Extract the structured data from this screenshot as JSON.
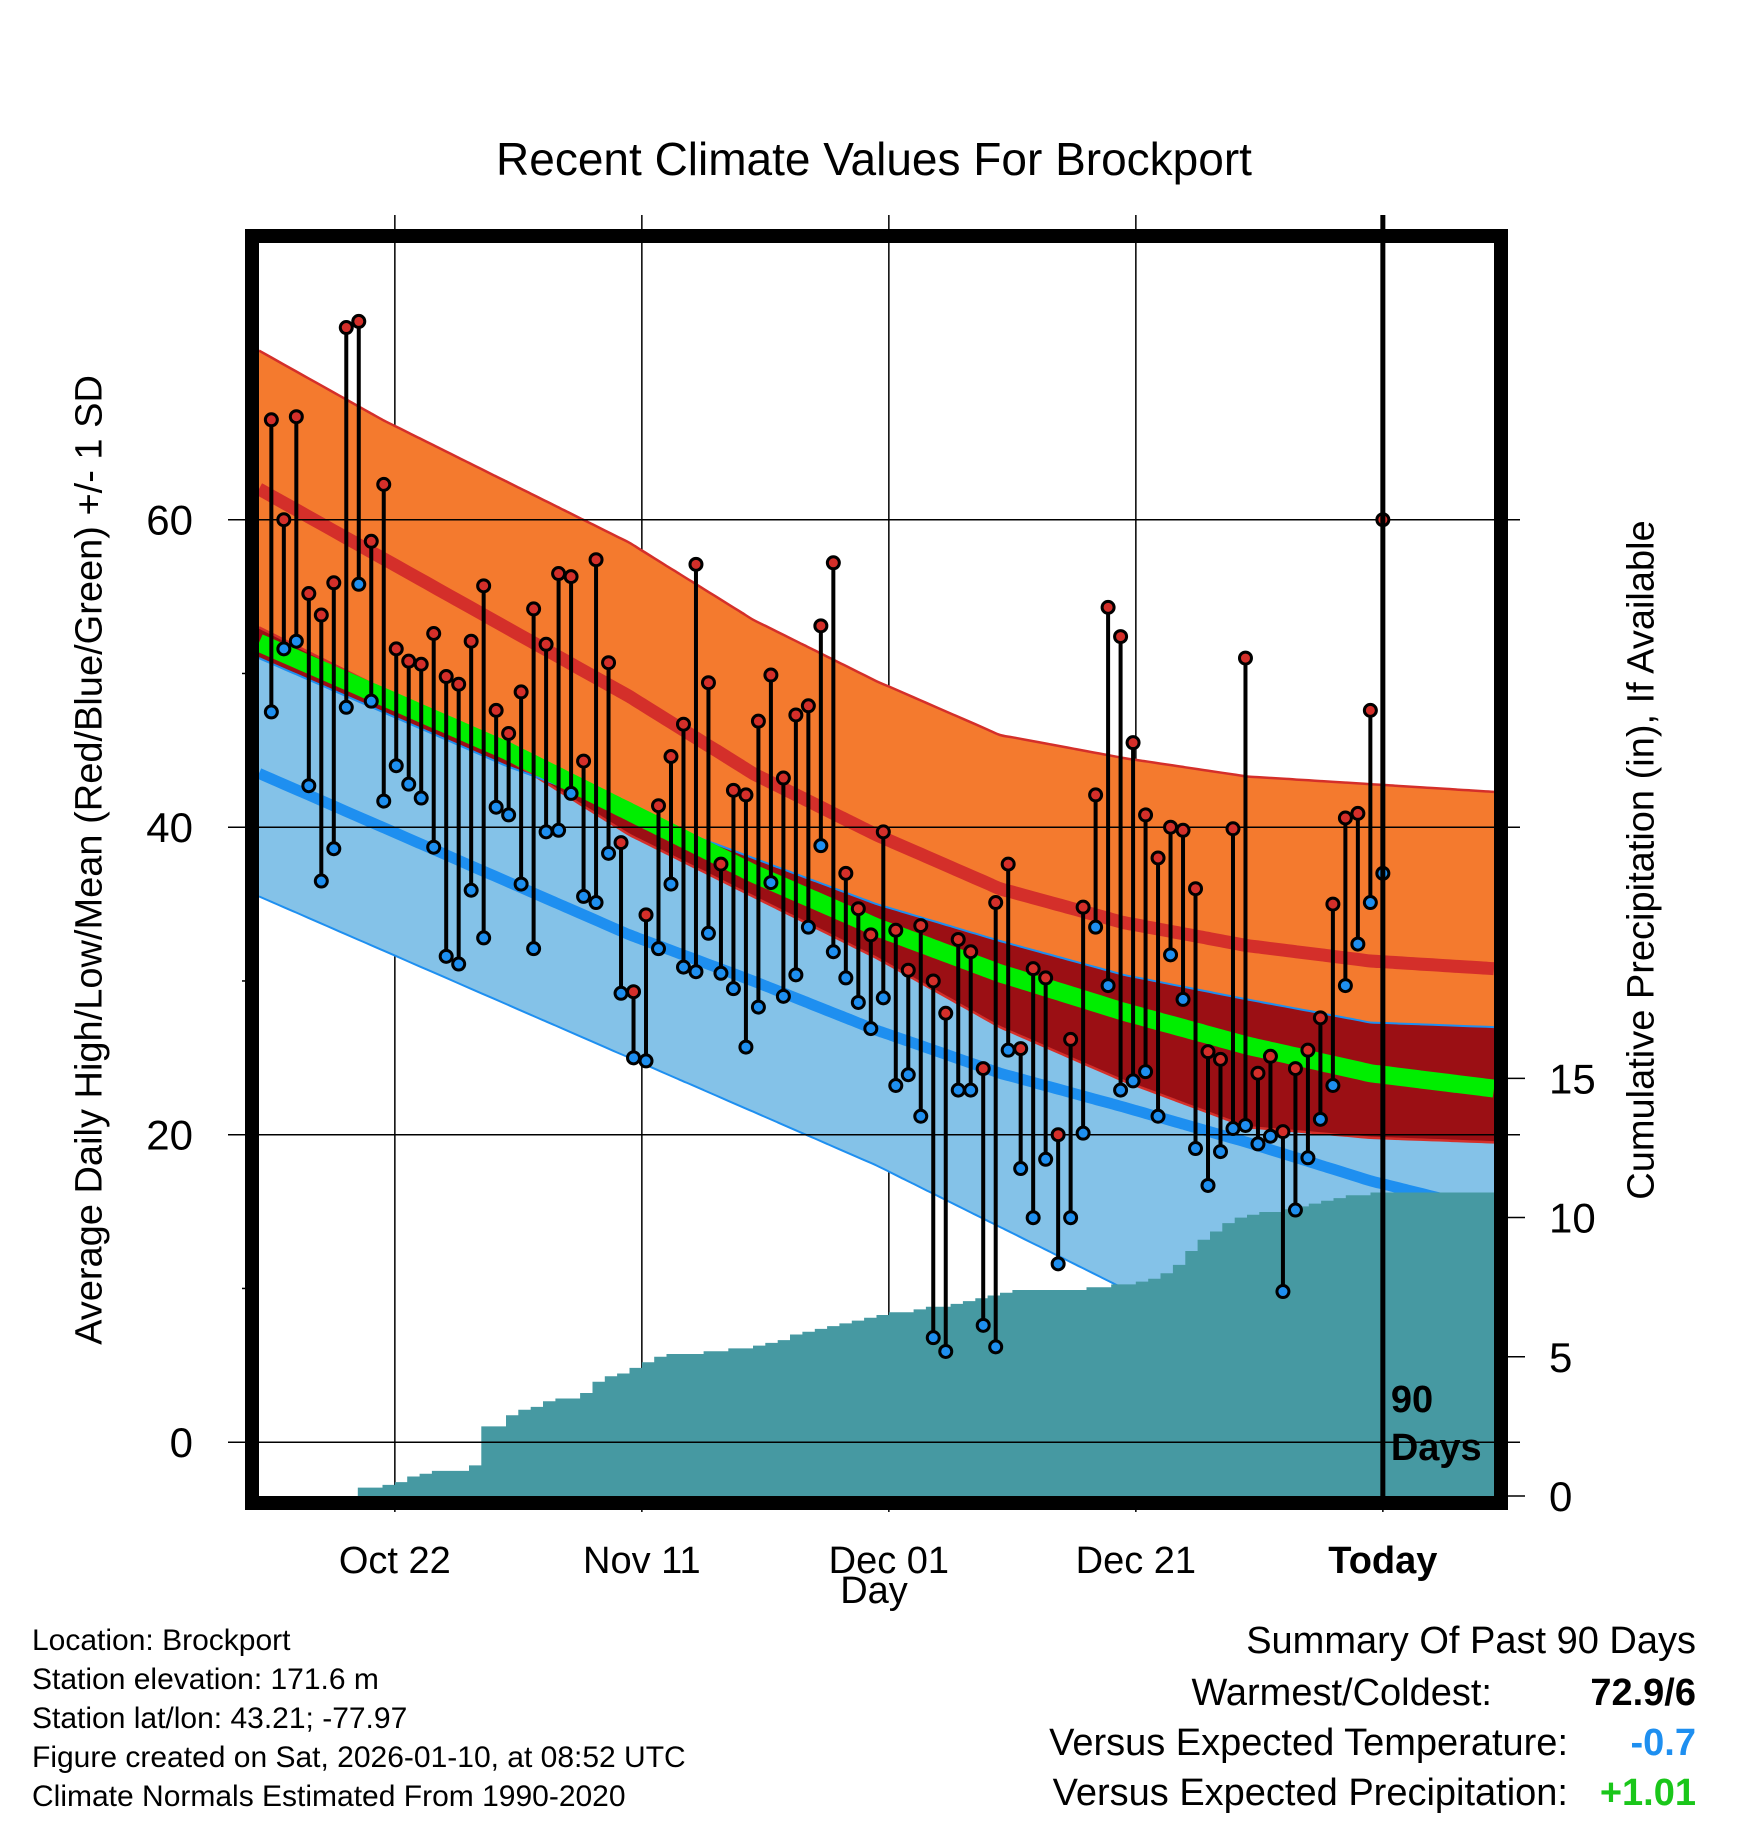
{
  "chart_data": {
    "type": "line",
    "title": "Recent Climate Values For Brockport",
    "xlabel": "Day",
    "ylabel": "Average Daily High/Low/Mean (Red/Blue/Green) +/- 1 SD",
    "y2label": "Cumulative Precipitation (in), If Available",
    "x_range_days": [
      0,
      100
    ],
    "ylim": [
      -3.5,
      78
    ],
    "y_ticks": [
      0,
      20,
      40,
      60
    ],
    "y2lim": [
      0,
      45
    ],
    "y2_ticks": [
      0,
      5,
      10,
      15
    ],
    "x_ticks": [
      {
        "day": 11,
        "label": "Oct 22"
      },
      {
        "day": 31,
        "label": "Nov 11"
      },
      {
        "day": 51,
        "label": "Dec 01"
      },
      {
        "day": 71,
        "label": "Dec 21"
      },
      {
        "day": 91,
        "label": "Today"
      }
    ],
    "today_day": 91,
    "window_label": [
      "90",
      "Days"
    ],
    "normals": {
      "days": [
        0,
        10,
        20,
        30,
        40,
        50,
        60,
        70,
        80,
        90,
        100
      ],
      "high_mean": [
        62.0,
        57.5,
        53.0,
        48.5,
        43.5,
        39.5,
        36.0,
        33.8,
        32.3,
        31.3,
        30.8
      ],
      "high_upper": [
        71.0,
        66.5,
        62.5,
        58.5,
        53.5,
        49.5,
        46.0,
        44.5,
        43.3,
        42.8,
        42.3
      ],
      "high_lower": [
        53.0,
        49.0,
        44.5,
        39.5,
        35.5,
        31.5,
        27.0,
        23.5,
        20.5,
        19.8,
        19.5
      ],
      "mean_mean": [
        52.0,
        48.5,
        45.0,
        41.0,
        37.0,
        33.5,
        30.5,
        28.0,
        25.8,
        24.0,
        23.0
      ],
      "low_mean": [
        43.5,
        40.0,
        36.5,
        33.0,
        30.0,
        26.8,
        24.0,
        21.8,
        19.5,
        17.0,
        15.0
      ],
      "low_upper": [
        51.0,
        47.5,
        44.0,
        41.0,
        38.0,
        35.0,
        32.6,
        30.4,
        28.8,
        27.3,
        27.0
      ],
      "low_lower": [
        35.5,
        32.0,
        28.5,
        25.0,
        21.5,
        18.0,
        14.0,
        10.0,
        6.5,
        4.0,
        2.5
      ]
    },
    "series": [
      {
        "name": "High",
        "values": [
          66.5,
          60,
          66.7,
          55.2,
          53.8,
          55.9,
          72.5,
          72.9,
          58.6,
          62.3,
          51.6,
          50.8,
          50.6,
          52.6,
          49.8,
          49.3,
          52.1,
          55.7,
          47.6,
          46.1,
          48.8,
          54.2,
          51.9,
          56.5,
          56.3,
          44.3,
          57.4,
          50.7,
          39,
          29.3,
          34.3,
          41.4,
          44.6,
          46.7,
          57.1,
          49.4,
          37.6,
          42.4,
          42.1,
          46.9,
          49.9,
          43.2,
          47.3,
          47.9,
          53.1,
          57.2,
          37,
          34.7,
          33,
          39.7,
          33.3,
          30.7,
          33.6,
          30,
          27.9,
          32.7,
          31.9,
          24.3,
          35.1,
          37.6,
          25.6,
          30.8,
          30.2,
          20,
          26.2,
          34.8,
          42.1,
          54.3,
          52.4,
          45.5,
          40.8,
          38,
          40,
          39.8,
          36,
          25.4,
          24.9,
          39.9,
          51,
          24,
          25.1,
          20.2,
          24.3,
          25.5,
          27.6,
          35,
          40.6,
          40.9,
          47.6,
          60
        ]
      },
      {
        "name": "Low",
        "values": [
          47.5,
          51.6,
          52.1,
          42.7,
          36.5,
          38.6,
          47.8,
          55.8,
          48.2,
          41.7,
          44,
          42.8,
          41.9,
          38.7,
          31.6,
          31.1,
          35.9,
          32.8,
          41.3,
          40.8,
          36.3,
          32.1,
          39.7,
          39.8,
          42.2,
          35.5,
          35.1,
          38.3,
          29.2,
          25,
          24.8,
          32.1,
          36.3,
          30.9,
          30.6,
          33.1,
          30.5,
          29.5,
          25.7,
          28.3,
          36.4,
          29,
          30.4,
          33.5,
          38.8,
          31.9,
          30.2,
          28.6,
          26.9,
          28.9,
          23.2,
          23.9,
          21.2,
          6.8,
          5.9,
          22.9,
          22.9,
          7.6,
          6.2,
          25.5,
          17.8,
          14.6,
          18.4,
          11.6,
          14.6,
          20.1,
          33.5,
          29.7,
          22.9,
          23.5,
          24.1,
          21.2,
          31.7,
          28.8,
          19.1,
          16.7,
          18.9,
          20.4,
          20.6,
          19.4,
          19.9,
          9.8,
          15.1,
          18.5,
          21,
          23.2,
          29.7,
          32.4,
          35.1,
          37
        ]
      }
    ],
    "precipitation": {
      "days": [
        7,
        8,
        10,
        11,
        12,
        13,
        14,
        16,
        17,
        18,
        19,
        20,
        21,
        22,
        23,
        24,
        25,
        26,
        27,
        28,
        29,
        30,
        31,
        32,
        33,
        35,
        36,
        37,
        38,
        39,
        40,
        41,
        42,
        43,
        44,
        45,
        46,
        47,
        48,
        49,
        50,
        51,
        52,
        53,
        54,
        55,
        56,
        57,
        58,
        59,
        60,
        61,
        62,
        63,
        64,
        65,
        66,
        67,
        68,
        69,
        70,
        71,
        72,
        73,
        74,
        75,
        76,
        77,
        78,
        79,
        80,
        81,
        82,
        83,
        84,
        85,
        86,
        87,
        88,
        89,
        90,
        91,
        100
      ],
      "values": [
        0,
        0.3,
        0.4,
        0.5,
        0.7,
        0.8,
        0.9,
        0.9,
        1.1,
        2.5,
        2.5,
        2.9,
        3.1,
        3.2,
        3.4,
        3.5,
        3.5,
        3.7,
        4.1,
        4.3,
        4.4,
        4.6,
        4.8,
        5,
        5.1,
        5.1,
        5.2,
        5.2,
        5.3,
        5.3,
        5.4,
        5.5,
        5.6,
        5.8,
        5.9,
        6,
        6.1,
        6.2,
        6.3,
        6.4,
        6.5,
        6.6,
        6.6,
        6.7,
        6.8,
        6.8,
        6.9,
        7,
        7.1,
        7.2,
        7.3,
        7.4,
        7.4,
        7.4,
        7.4,
        7.4,
        7.4,
        7.5,
        7.5,
        7.6,
        7.6,
        7.7,
        7.8,
        8,
        8.3,
        8.8,
        9.2,
        9.5,
        9.8,
        10,
        10.1,
        10.2,
        10.2,
        10.3,
        10.4,
        10.5,
        10.6,
        10.7,
        10.8,
        10.8,
        10.9,
        10.9,
        10.9
      ]
    }
  },
  "info": {
    "location": "Location: Brockport",
    "elevation": "Station elevation: 171.6 m",
    "latlon": "Station lat/lon: 43.21; -77.97",
    "created": "Figure created on Sat, 2026-01-10, at 08:52 UTC",
    "normals": "Climate Normals Estimated From 1990-2020"
  },
  "summary": {
    "heading": "Summary Of Past 90 Days",
    "warm_cold_label": "Warmest/Coldest:",
    "warm_cold_value": "72.9/6",
    "temp_label": "Versus Expected Temperature:",
    "temp_value": "-0.7",
    "precip_label": "Versus Expected Precipitation:",
    "precip_value": "+1.01"
  },
  "colors": {
    "high_band": "#f47a2e",
    "high_line": "#d42f2a",
    "overlap": "#9b0f14",
    "low_band": "#84c2e8",
    "low_line": "#1e8ff0",
    "mean": "#00ee00",
    "precip": "#4699a2",
    "temp_value": "#1e8ff0",
    "precip_value": "#1ac61a"
  }
}
